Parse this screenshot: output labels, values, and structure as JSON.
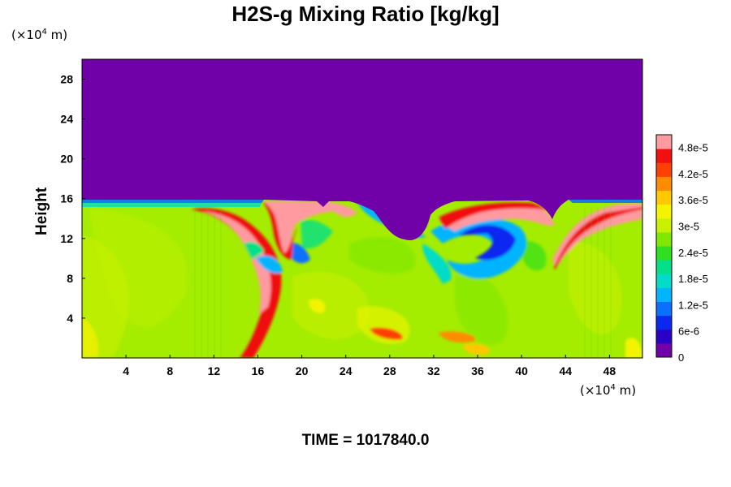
{
  "chart_data": {
    "type": "heatmap",
    "title": "H2S-g Mixing Ratio [kg/kg]",
    "ylabel": "Height",
    "x_unit_prefix": "(×10",
    "x_unit_exp": "4",
    "x_unit_suffix": " m)",
    "y_unit_prefix": "(×10",
    "y_unit_exp": "4",
    "y_unit_suffix": " m)",
    "xlim": [
      0,
      51
    ],
    "ylim": [
      0,
      30
    ],
    "x_ticks": [
      4,
      8,
      12,
      16,
      20,
      24,
      28,
      32,
      36,
      40,
      44,
      48
    ],
    "y_ticks": [
      4,
      8,
      12,
      16,
      20,
      24,
      28
    ],
    "colorbar": {
      "min": 0,
      "max": 5e-05,
      "ticks": [
        {
          "value": 0,
          "label": "0"
        },
        {
          "value": 6e-06,
          "label": "6e-6"
        },
        {
          "value": 1.2e-05,
          "label": "1.2e-5"
        },
        {
          "value": 1.8e-05,
          "label": "1.8e-5"
        },
        {
          "value": 2.4e-05,
          "label": "2.4e-5"
        },
        {
          "value": 3e-05,
          "label": "3e-5"
        },
        {
          "value": 3.6e-05,
          "label": "3.6e-5"
        },
        {
          "value": 4.2e-05,
          "label": "4.2e-5"
        },
        {
          "value": 4.8e-05,
          "label": "4.8e-5"
        }
      ],
      "colors": [
        "#7000a8",
        "#2a00c8",
        "#0a28f0",
        "#0a70ff",
        "#00b4ff",
        "#00dcc8",
        "#00e088",
        "#30e020",
        "#80e800",
        "#c8f000",
        "#f4f400",
        "#ffc800",
        "#ff8c00",
        "#ff4000",
        "#f01010",
        "#ff9aa0"
      ]
    },
    "time_label": "TIME = 1017840.0"
  }
}
